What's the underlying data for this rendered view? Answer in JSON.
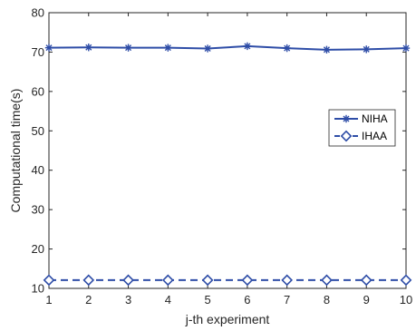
{
  "chart_data": {
    "type": "line",
    "title": "",
    "xlabel": "j-th experiment",
    "ylabel": "Computational time(s)",
    "x": [
      1,
      2,
      3,
      4,
      5,
      6,
      7,
      8,
      9,
      10
    ],
    "xlim": [
      1,
      10
    ],
    "ylim": [
      10,
      80
    ],
    "xticks": [
      "1",
      "2",
      "3",
      "4",
      "5",
      "6",
      "7",
      "8",
      "9",
      "10"
    ],
    "yticks": [
      "10",
      "20",
      "30",
      "40",
      "50",
      "60",
      "70",
      "80"
    ],
    "grid": false,
    "legend_position": "right-center",
    "series": [
      {
        "name": "NIHA",
        "values": [
          71.1,
          71.2,
          71.1,
          71.1,
          70.9,
          71.5,
          71.0,
          70.6,
          70.7,
          71.0
        ],
        "marker": "asterisk",
        "line_style": "solid",
        "color": "#2E4DA7"
      },
      {
        "name": "IHAA",
        "values": [
          12.1,
          12.1,
          12.1,
          12.1,
          12.1,
          12.1,
          12.1,
          12.1,
          12.1,
          12.1
        ],
        "marker": "diamond",
        "line_style": "dashed",
        "color": "#2E4DA7"
      }
    ]
  }
}
